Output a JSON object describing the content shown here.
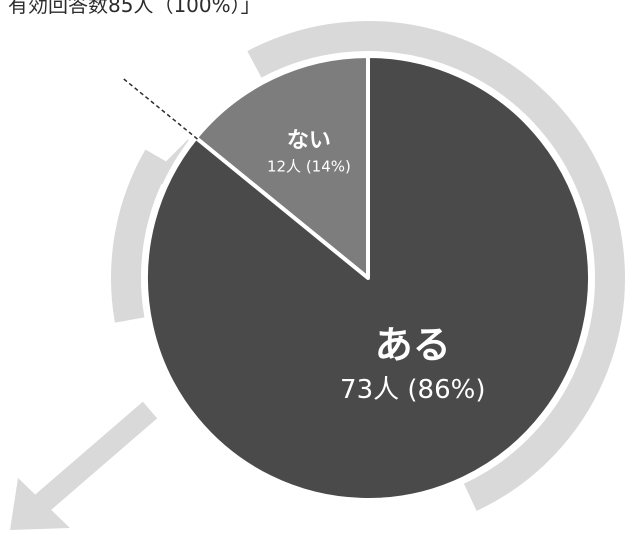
{
  "header": {
    "text": "有効回答数85人（100%）」"
  },
  "chart_data": {
    "type": "pie",
    "title": "",
    "total": 85,
    "slices": [
      {
        "label": "ない",
        "value": 12,
        "percent": 14,
        "value_label": "12人 (14%)",
        "color": "#7d7d7d"
      },
      {
        "label": "ある",
        "value": 73,
        "percent": 86,
        "value_label": "73人 (86%)",
        "color": "#4a4a4a"
      }
    ],
    "start_angle_deg": 0,
    "direction": "counterclockwise",
    "decorations": {
      "surrounding_arrow_color": "#d9d9d9",
      "slice_border_color": "#ffffff",
      "leader_line_style": "dashed"
    }
  }
}
